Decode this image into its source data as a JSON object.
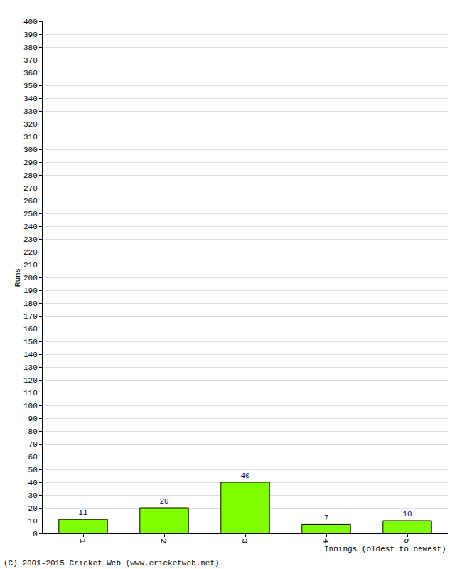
{
  "chart_data": {
    "type": "bar",
    "x_label": "Innings (oldest to newest)",
    "y_label": "Runs",
    "annotations": [
      "(C) 2001-2015 Cricket Web (www.cricketweb.net)"
    ],
    "categories": [
      "1",
      "2",
      "3",
      "4",
      "5"
    ],
    "values": [
      11,
      20,
      40,
      7,
      10
    ],
    "color": "#80ff00",
    "data_labels": true,
    "ylim": [
      0,
      400
    ],
    "yticks": [
      0,
      10,
      20,
      30,
      40,
      50,
      60,
      70,
      80,
      90,
      100,
      110,
      120,
      130,
      140,
      150,
      160,
      170,
      180,
      190,
      200,
      210,
      220,
      230,
      240,
      250,
      260,
      270,
      280,
      290,
      300,
      310,
      320,
      330,
      340,
      350,
      360,
      370,
      380,
      390,
      400
    ],
    "grid": true
  }
}
